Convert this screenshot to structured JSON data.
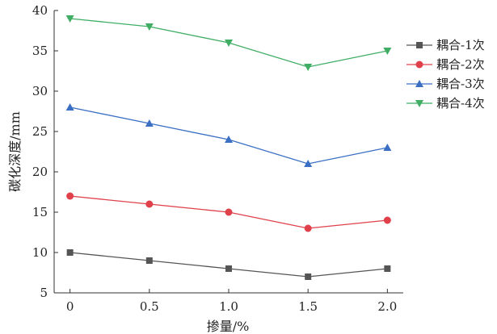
{
  "chart_data": {
    "type": "line",
    "title": "",
    "xlabel": "掺量/%",
    "ylabel": "碳化深度/mm",
    "x": [
      0,
      0.5,
      1.0,
      1.5,
      2.0
    ],
    "x_tick_labels": [
      "0",
      "0.5",
      "1.0",
      "1.5",
      "2.0"
    ],
    "y_ticks": [
      5,
      10,
      15,
      20,
      25,
      30,
      35,
      40
    ],
    "xlim": [
      -0.1,
      2.1
    ],
    "ylim": [
      5,
      40
    ],
    "grid": false,
    "legend_position": "right",
    "series": [
      {
        "name": "耦合-1次",
        "values": [
          10,
          9,
          8,
          7,
          8
        ],
        "color": "#555555",
        "marker": "square"
      },
      {
        "name": "耦合-2次",
        "values": [
          17,
          16,
          15,
          13,
          14
        ],
        "color": "#e0404a",
        "marker": "circle"
      },
      {
        "name": "耦合-3次",
        "values": [
          28,
          26,
          24,
          21,
          23
        ],
        "color": "#3a6fc4",
        "marker": "triangle-up"
      },
      {
        "name": "耦合-4次",
        "values": [
          39,
          38,
          36,
          33,
          35
        ],
        "color": "#3fae64",
        "marker": "triangle-down"
      }
    ]
  }
}
